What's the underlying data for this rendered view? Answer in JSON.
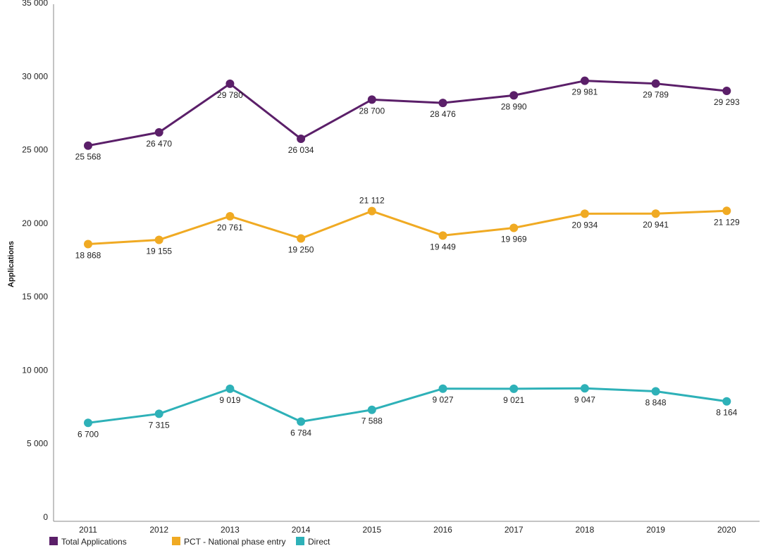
{
  "chart_data": {
    "type": "line",
    "title": "",
    "xlabel": "",
    "ylabel": "Applications",
    "x": [
      "2011",
      "2012",
      "2013",
      "2014",
      "2015",
      "2016",
      "2017",
      "2018",
      "2019",
      "2020"
    ],
    "ylim": [
      0,
      35000
    ],
    "yticks": [
      0,
      5000,
      10000,
      15000,
      20000,
      25000,
      30000,
      35000
    ],
    "ytick_labels": [
      "0",
      "5 000",
      "10 000",
      "15 000",
      "20 000",
      "25 000",
      "30 000",
      "35 000"
    ],
    "grid": false,
    "legend_position": "bottom-left",
    "series": [
      {
        "name": "Total Applications",
        "color": "#5b1f69",
        "values": [
          25568,
          26470,
          29780,
          26034,
          28700,
          28476,
          28990,
          29981,
          29789,
          29293
        ],
        "labels": [
          "25 568",
          "26 470",
          "29 780",
          "26 034",
          "28 700",
          "28 476",
          "28 990",
          "29 981",
          "29 789",
          "29 293"
        ]
      },
      {
        "name": "PCT - National phase entry",
        "color": "#f0aa23",
        "values": [
          18868,
          19155,
          20761,
          19250,
          21112,
          19449,
          19969,
          20934,
          20941,
          21129
        ],
        "labels": [
          "18 868",
          "19 155",
          "20 761",
          "19 250",
          "21 112",
          "19 449",
          "19 969",
          "20 934",
          "20 941",
          "21 129"
        ]
      },
      {
        "name": "Direct",
        "color": "#2eb1b8",
        "values": [
          6700,
          7315,
          9019,
          6784,
          7588,
          9027,
          9021,
          9047,
          8848,
          8164
        ],
        "labels": [
          "6 700",
          "7 315",
          "9 019",
          "6 784",
          "7 588",
          "9 027",
          "9 021",
          "9 047",
          "8 848",
          "8 164"
        ]
      }
    ]
  }
}
